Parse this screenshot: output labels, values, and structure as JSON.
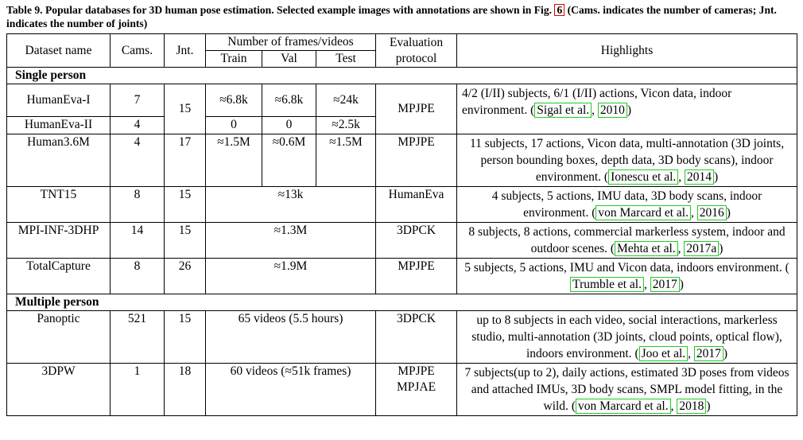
{
  "caption": {
    "prefix": "Table 9. Popular databases for 3D human pose estimation. Selected example images with annotations are shown in Fig.",
    "fig_ref": "6",
    "suffix": "(Cams. indicates the number of cameras; Jnt. indicates the number of joints)"
  },
  "headers": {
    "dataset": "Dataset name",
    "cams": "Cams.",
    "jnt": "Jnt.",
    "frames": "Number of frames/videos",
    "train": "Train",
    "val": "Val",
    "test": "Test",
    "eval": "Evaluation protocol",
    "highlights": "Highlights"
  },
  "sections": {
    "single": "Single person",
    "multiple": "Multiple person"
  },
  "rows": {
    "he1": {
      "name": "HumanEva-I",
      "cams": "7",
      "train": "≈6.8k",
      "val": "≈6.8k",
      "test": "≈24k"
    },
    "he2": {
      "name": "HumanEva-II",
      "cams": "4",
      "train": "0",
      "val": "0",
      "test": "≈2.5k"
    },
    "he": {
      "jnt": "15",
      "eval": "MPJPE",
      "hl_text": "4/2 (I/II) subjects, 6/1 (I/II) actions, Vicon data, indoor environment.",
      "cite_a": "Sigal et al.",
      "cite_b": "2010"
    },
    "h36m": {
      "name": "Human3.6M",
      "cams": "4",
      "jnt": "17",
      "train": "≈1.5M",
      "val": "≈0.6M",
      "test": "≈1.5M",
      "eval": "MPJPE",
      "hl_text": "11 subjects, 17 actions, Vicon data, multi-annotation (3D joints, person bounding boxes, depth data, 3D body scans), indoor environment.",
      "cite_a": "Ionescu et al.",
      "cite_b": "2014"
    },
    "tnt15": {
      "name": "TNT15",
      "cams": "8",
      "jnt": "15",
      "frames": "≈13k",
      "eval": "HumanEva",
      "hl_text": "4 subjects, 5 actions, IMU data, 3D body scans, indoor environment.",
      "cite_a": "von Marcard et al.",
      "cite_b": "2016"
    },
    "mpi": {
      "name": "MPI-INF-3DHP",
      "cams": "14",
      "jnt": "15",
      "frames": "≈1.3M",
      "eval": "3DPCK",
      "hl_text": "8 subjects, 8 actions, commercial markerless system, indoor and outdoor scenes.",
      "cite_a": "Mehta et al.",
      "cite_b": "2017a"
    },
    "total": {
      "name": "TotalCapture",
      "cams": "8",
      "jnt": "26",
      "frames": "≈1.9M",
      "eval": "MPJPE",
      "hl_text": "5 subjects, 5 actions, IMU and Vicon data, indoors environment.",
      "cite_a": "Trumble et al.",
      "cite_b": "2017"
    },
    "panoptic": {
      "name": "Panoptic",
      "cams": "521",
      "jnt": "15",
      "frames": "65 videos (5.5 hours)",
      "eval": "3DPCK",
      "hl_text": "up to 8 subjects in each video, social interactions, markerless studio, multi-annotation (3D joints, cloud points, optical flow), indoors environment.",
      "cite_a": "Joo et al.",
      "cite_b": "2017"
    },
    "dpw": {
      "name": "3DPW",
      "cams": "1",
      "jnt": "18",
      "frames": "60 videos (≈51k frames)",
      "eval1": "MPJPE",
      "eval2": "MPJAE",
      "hl_text": "7 subjects(up to 2), daily actions, estimated 3D poses from videos and attached IMUs, 3D body scans, SMPL model fitting, in the wild.",
      "cite_a": "von Marcard et al.",
      "cite_b": "2018"
    }
  }
}
